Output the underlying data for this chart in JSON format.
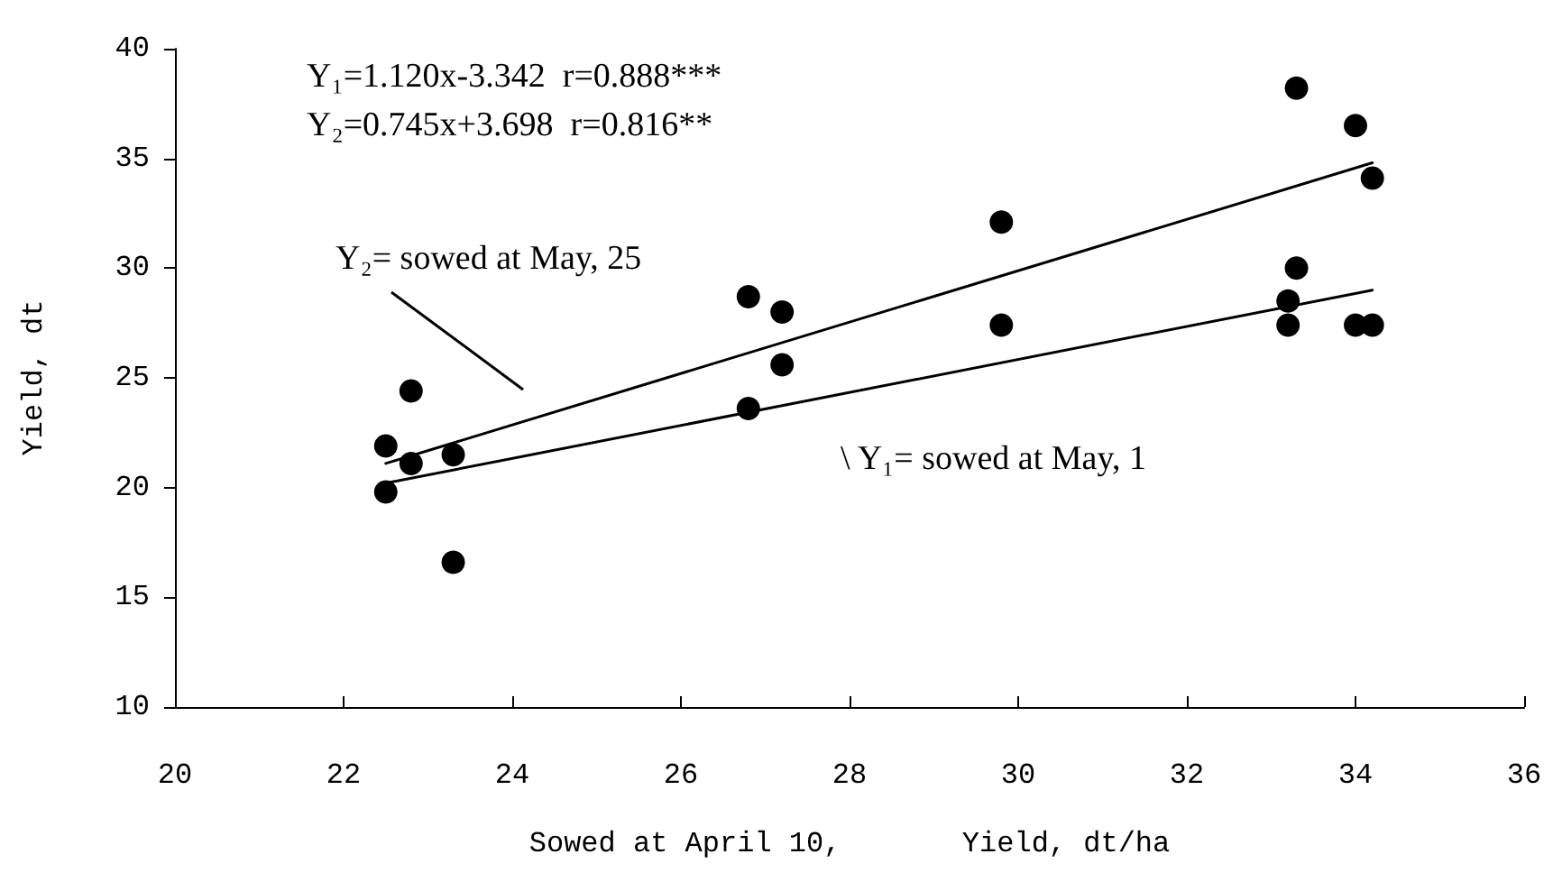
{
  "chart_data": {
    "type": "scatter",
    "xlabel": "Sowed at April 10,       Yield, dt/ha",
    "ylabel": "Yield, dt",
    "xlim": [
      20,
      36
    ],
    "xticks": [
      20,
      22,
      24,
      26,
      28,
      30,
      32,
      34,
      36
    ],
    "ylim": [
      10,
      40
    ],
    "yticks": [
      10,
      15,
      20,
      25,
      30,
      35,
      40
    ],
    "grid": false,
    "marker": "circle",
    "series": [
      {
        "color": "#000000",
        "x": [
          22.5,
          22.5,
          22.8,
          22.8,
          23.3,
          23.3,
          26.8,
          26.8,
          27.2,
          27.2,
          29.8,
          29.8,
          33.2,
          33.2,
          33.3,
          33.3,
          34.0,
          34.0,
          34.2,
          34.2
        ],
        "values": [
          21.9,
          19.8,
          24.4,
          21.1,
          21.5,
          16.6,
          28.7,
          23.6,
          28.0,
          25.6,
          32.1,
          27.4,
          28.5,
          27.4,
          38.2,
          30.0,
          36.5,
          27.4,
          34.1,
          27.4
        ]
      },
      {
        "type": "line",
        "color": "#000000",
        "marker": "none",
        "line_style": "solid",
        "x": [
          22.5,
          34.2
        ],
        "values": [
          21.1,
          34.8
        ]
      },
      {
        "type": "line",
        "color": "#000000",
        "marker": "none",
        "line_style": "solid",
        "x": [
          22.5,
          34.2
        ],
        "values": [
          20.2,
          29.0
        ]
      }
    ],
    "annotations": [
      "Y₁=1.120x-3.342  r=0.888***",
      "Y₂=0.745x+3.698  r=0.816**",
      "Y₂= sowed at May, 25",
      "\\ Y₁= sowed at May, 1"
    ]
  }
}
